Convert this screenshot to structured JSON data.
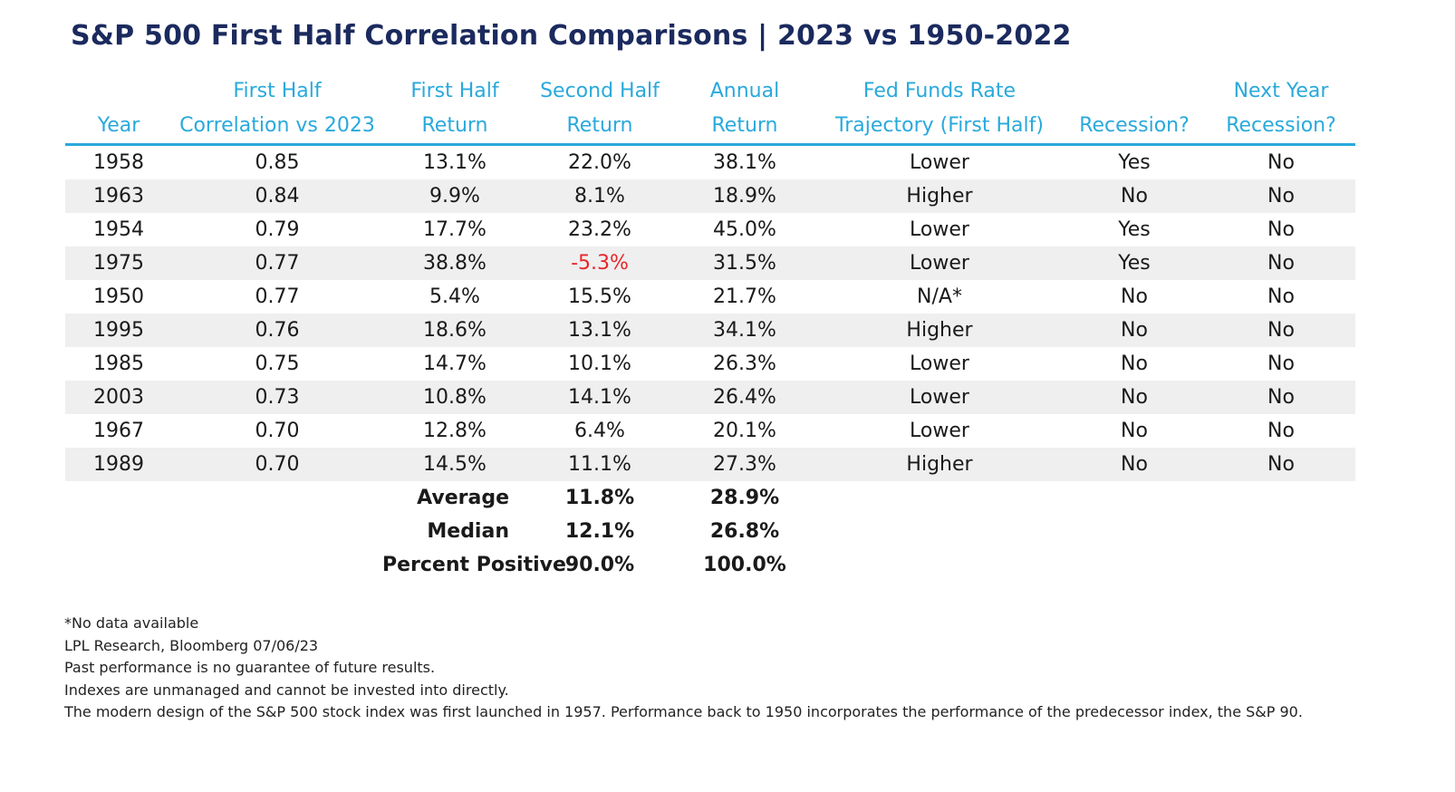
{
  "title": "S&P 500 First Half Correlation Comparisons | 2023 vs 1950-2022",
  "chart_data": {
    "type": "table",
    "title": "S&P 500 First Half Correlation Comparisons | 2023 vs 1950-2022",
    "columns": [
      {
        "key": "year",
        "line1": "",
        "line2": "Year"
      },
      {
        "key": "corr",
        "line1": "First Half",
        "line2": "Correlation vs 2023"
      },
      {
        "key": "first_half",
        "line1": "First Half",
        "line2": "Return"
      },
      {
        "key": "second_half",
        "line1": "Second Half",
        "line2": "Return"
      },
      {
        "key": "annual",
        "line1": "Annual",
        "line2": "Return"
      },
      {
        "key": "fed",
        "line1": "Fed Funds Rate",
        "line2": "Trajectory (First Half)"
      },
      {
        "key": "recession",
        "line1": "",
        "line2": "Recession?"
      },
      {
        "key": "next_recession",
        "line1": "Next Year",
        "line2": "Recession?"
      }
    ],
    "rows": [
      {
        "year": "1958",
        "corr": "0.85",
        "first_half": "13.1%",
        "second_half": "22.0%",
        "annual": "38.1%",
        "fed": "Lower",
        "recession": "Yes",
        "next_recession": "No"
      },
      {
        "year": "1963",
        "corr": "0.84",
        "first_half": "9.9%",
        "second_half": "8.1%",
        "annual": "18.9%",
        "fed": "Higher",
        "recession": "No",
        "next_recession": "No"
      },
      {
        "year": "1954",
        "corr": "0.79",
        "first_half": "17.7%",
        "second_half": "23.2%",
        "annual": "45.0%",
        "fed": "Lower",
        "recession": "Yes",
        "next_recession": "No"
      },
      {
        "year": "1975",
        "corr": "0.77",
        "first_half": "38.8%",
        "second_half": "-5.3%",
        "annual": "31.5%",
        "fed": "Lower",
        "recession": "Yes",
        "next_recession": "No"
      },
      {
        "year": "1950",
        "corr": "0.77",
        "first_half": "5.4%",
        "second_half": "15.5%",
        "annual": "21.7%",
        "fed": "N/A*",
        "recession": "No",
        "next_recession": "No"
      },
      {
        "year": "1995",
        "corr": "0.76",
        "first_half": "18.6%",
        "second_half": "13.1%",
        "annual": "34.1%",
        "fed": "Higher",
        "recession": "No",
        "next_recession": "No"
      },
      {
        "year": "1985",
        "corr": "0.75",
        "first_half": "14.7%",
        "second_half": "10.1%",
        "annual": "26.3%",
        "fed": "Lower",
        "recession": "No",
        "next_recession": "No"
      },
      {
        "year": "2003",
        "corr": "0.73",
        "first_half": "10.8%",
        "second_half": "14.1%",
        "annual": "26.4%",
        "fed": "Lower",
        "recession": "No",
        "next_recession": "No"
      },
      {
        "year": "1967",
        "corr": "0.70",
        "first_half": "12.8%",
        "second_half": "6.4%",
        "annual": "20.1%",
        "fed": "Lower",
        "recession": "No",
        "next_recession": "No"
      },
      {
        "year": "1989",
        "corr": "0.70",
        "first_half": "14.5%",
        "second_half": "11.1%",
        "annual": "27.3%",
        "fed": "Higher",
        "recession": "No",
        "next_recession": "No"
      }
    ],
    "summary": [
      {
        "label": "Average",
        "second_half": "11.8%",
        "annual": "28.9%"
      },
      {
        "label": "Median",
        "second_half": "12.1%",
        "annual": "26.8%"
      },
      {
        "label": "Percent Positive",
        "second_half": "90.0%",
        "annual": "100.0%"
      }
    ]
  },
  "notes": [
    "*No data available",
    "LPL Research, Bloomberg 07/06/23",
    "Past performance is no guarantee of future results.",
    "Indexes are unmanaged and cannot be invested into directly.",
    "The modern design of the S&P 500 stock index was first launched in 1957. Performance back to 1950 incorporates the performance of the predecessor index, the S&P 90."
  ],
  "colors": {
    "title": "#1b2a5e",
    "header_text": "#29a9dc",
    "header_rule": "#29a9dc",
    "row_stripe": "#efefef",
    "negative": "#e8262b"
  }
}
